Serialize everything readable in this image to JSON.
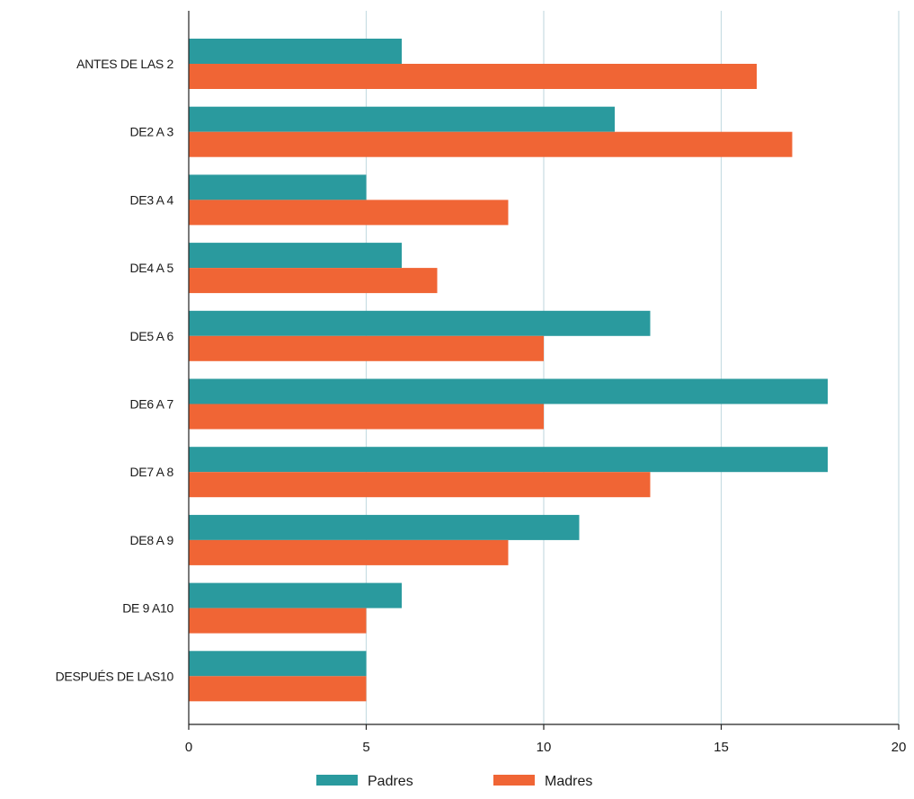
{
  "chart_data": {
    "type": "bar",
    "orientation": "horizontal",
    "title": "",
    "xlabel": "",
    "ylabel": "",
    "categories": [
      "ANTES DE LAS 2",
      "DE2 A 3",
      "DE3 A 4",
      "DE4 A 5",
      "DE5 A 6",
      "DE6 A 7",
      "DE7 A 8",
      "DE8 A 9",
      "DE 9 A10",
      "DESPUÉS DE LAS10"
    ],
    "series": [
      {
        "name": "Padres",
        "color": "#2a9a9e",
        "values": [
          6,
          12,
          5,
          6,
          13,
          18,
          18,
          11,
          6,
          5
        ]
      },
      {
        "name": "Madres",
        "color": "#f06535",
        "values": [
          16,
          17,
          9,
          7,
          10,
          10,
          13,
          9,
          5,
          5
        ]
      }
    ],
    "xlim": [
      0,
      20
    ],
    "xticks": [
      0,
      5,
      10,
      15,
      20
    ],
    "grid": true,
    "legend": "bottom"
  }
}
